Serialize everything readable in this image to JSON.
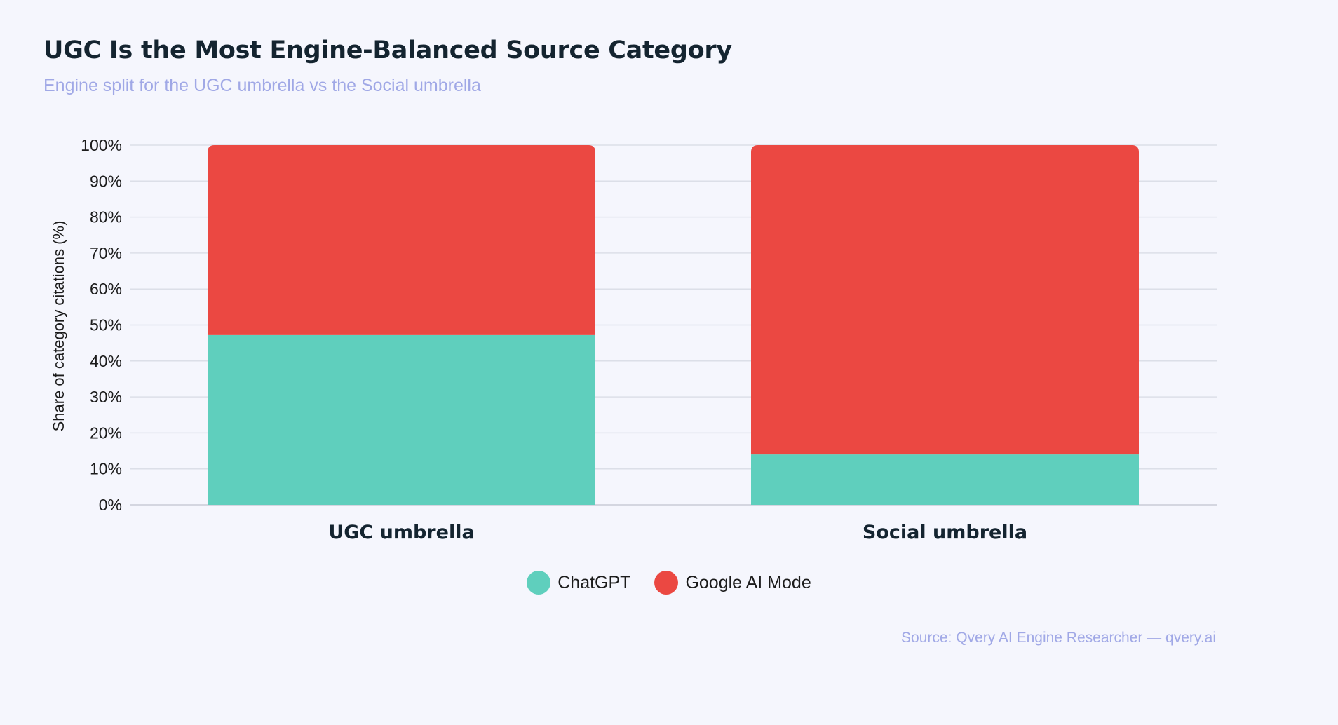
{
  "header": {
    "title": "UGC Is the Most Engine-Balanced Source Category",
    "subtitle": "Engine split for the UGC umbrella vs the Social umbrella"
  },
  "chart_data": {
    "type": "bar",
    "stacked": true,
    "title": "UGC Is the Most Engine-Balanced Source Category",
    "subtitle": "Engine split for the UGC umbrella vs the Social umbrella",
    "xlabel": "",
    "ylabel": "Share of category citations (%)",
    "ylim": [
      0,
      100
    ],
    "yticks": [
      "0%",
      "10%",
      "20%",
      "30%",
      "40%",
      "50%",
      "60%",
      "70%",
      "80%",
      "90%",
      "100%"
    ],
    "categories": [
      "UGC umbrella",
      "Social umbrella"
    ],
    "series": [
      {
        "name": "ChatGPT",
        "color": "#5fcfbd",
        "values": [
          47.2,
          14.0
        ]
      },
      {
        "name": "Google AI Mode",
        "color": "#eb4842",
        "values": [
          52.8,
          86.0
        ]
      }
    ],
    "grid": true,
    "legend_position": "bottom-center"
  },
  "legend": {
    "items": [
      {
        "label": "ChatGPT",
        "color": "#5fcfbd"
      },
      {
        "label": "Google AI Mode",
        "color": "#eb4842"
      }
    ]
  },
  "footer": {
    "source": "Source: Qvery AI Engine Researcher — qvery.ai"
  }
}
